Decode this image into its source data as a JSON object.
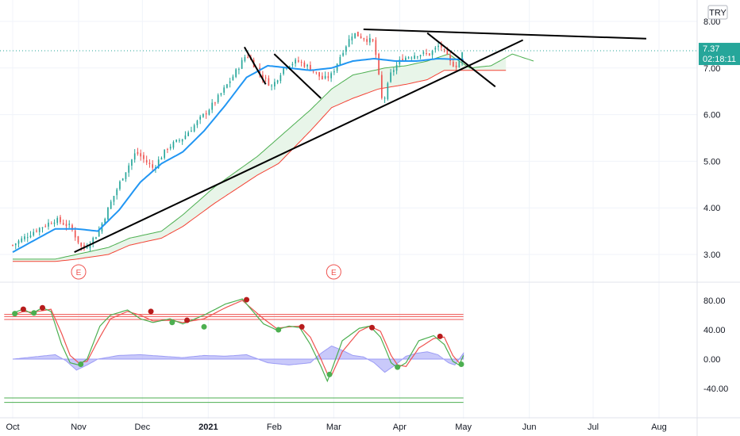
{
  "chart_data": [
    {
      "type": "candlestick",
      "currency": "TRY",
      "last_price_label": "7.37",
      "countdown_label": "02:18:11",
      "y_ticks": [
        "3.00",
        "4.00",
        "5.00",
        "6.00",
        "7.00",
        "8.00"
      ],
      "x_ticks": [
        "Oct",
        "Nov",
        "Dec",
        "2021",
        "Feb",
        "Mar",
        "Apr",
        "May",
        "Jun",
        "Jul",
        "Aug"
      ],
      "earnings_markers": [
        "E",
        "E"
      ],
      "x_days": {
        "Oct": 0,
        "Nov": 31,
        "Dec": 61,
        "2021": 92,
        "Feb": 123,
        "Mar": 151,
        "Apr": 182,
        "May": 212,
        "Jun": 243,
        "Jul": 273,
        "Aug": 304
      },
      "ylim": [
        2.6,
        8.2
      ],
      "close_anchors": [
        [
          0,
          3.2
        ],
        [
          10,
          3.5
        ],
        [
          20,
          3.75
        ],
        [
          27,
          3.6
        ],
        [
          33,
          3.1
        ],
        [
          40,
          3.45
        ],
        [
          46,
          4.1
        ],
        [
          52,
          4.7
        ],
        [
          58,
          5.2
        ],
        [
          66,
          4.85
        ],
        [
          73,
          5.3
        ],
        [
          80,
          5.5
        ],
        [
          86,
          5.8
        ],
        [
          92,
          6.1
        ],
        [
          98,
          6.45
        ],
        [
          104,
          6.85
        ],
        [
          110,
          7.3
        ],
        [
          116,
          6.9
        ],
        [
          122,
          6.6
        ],
        [
          128,
          7.05
        ],
        [
          134,
          7.15
        ],
        [
          140,
          7.0
        ],
        [
          146,
          6.75
        ],
        [
          150,
          6.85
        ],
        [
          155,
          7.35
        ],
        [
          160,
          7.75
        ],
        [
          165,
          7.65
        ],
        [
          170,
          7.55
        ],
        [
          174,
          6.2
        ],
        [
          178,
          6.9
        ],
        [
          183,
          7.2
        ],
        [
          190,
          7.3
        ],
        [
          196,
          7.3
        ],
        [
          201,
          7.5
        ],
        [
          206,
          7.1
        ],
        [
          209,
          7.05
        ],
        [
          212,
          7.37
        ]
      ],
      "ma_anchors": [
        [
          0,
          3.05
        ],
        [
          20,
          3.55
        ],
        [
          30,
          3.55
        ],
        [
          40,
          3.5
        ],
        [
          50,
          3.95
        ],
        [
          60,
          4.55
        ],
        [
          70,
          4.95
        ],
        [
          80,
          5.2
        ],
        [
          90,
          5.65
        ],
        [
          100,
          6.2
        ],
        [
          110,
          6.8
        ],
        [
          120,
          7.05
        ],
        [
          130,
          7.0
        ],
        [
          140,
          6.95
        ],
        [
          150,
          7.0
        ],
        [
          160,
          7.15
        ],
        [
          170,
          7.2
        ],
        [
          180,
          7.15
        ],
        [
          190,
          7.15
        ],
        [
          200,
          7.2
        ],
        [
          212,
          7.18
        ]
      ],
      "cloud_a_anchors": [
        [
          0,
          2.9
        ],
        [
          20,
          2.9
        ],
        [
          30,
          3.0
        ],
        [
          45,
          3.15
        ],
        [
          55,
          3.35
        ],
        [
          70,
          3.5
        ],
        [
          80,
          3.85
        ],
        [
          95,
          4.45
        ],
        [
          115,
          5.1
        ],
        [
          125,
          5.5
        ],
        [
          140,
          6.1
        ],
        [
          150,
          6.55
        ],
        [
          160,
          6.85
        ],
        [
          175,
          7.0
        ],
        [
          185,
          7.05
        ],
        [
          195,
          7.15
        ],
        [
          205,
          7.3
        ],
        [
          215,
          7.0
        ],
        [
          225,
          7.05
        ],
        [
          235,
          7.3
        ],
        [
          245,
          7.15
        ]
      ],
      "cloud_b_anchors": [
        [
          0,
          2.85
        ],
        [
          20,
          2.85
        ],
        [
          30,
          2.9
        ],
        [
          45,
          3.0
        ],
        [
          55,
          3.2
        ],
        [
          70,
          3.35
        ],
        [
          80,
          3.6
        ],
        [
          95,
          4.1
        ],
        [
          115,
          4.7
        ],
        [
          125,
          4.95
        ],
        [
          140,
          5.65
        ],
        [
          150,
          6.15
        ],
        [
          160,
          6.35
        ],
        [
          172,
          6.55
        ],
        [
          185,
          6.65
        ],
        [
          195,
          6.75
        ],
        [
          203,
          6.95
        ],
        [
          208,
          6.95
        ],
        [
          215,
          6.95
        ],
        [
          230,
          6.95
        ],
        [
          232,
          6.95
        ]
      ],
      "trendlines": [
        {
          "from": [
            29,
            3.05
          ],
          "to": [
            240,
            7.6
          ]
        },
        {
          "from": [
            165,
            7.83
          ],
          "to": [
            298,
            7.63
          ]
        },
        {
          "from": [
            109,
            7.45
          ],
          "to": [
            119,
            6.65
          ]
        },
        {
          "from": [
            123,
            7.3
          ],
          "to": [
            145,
            6.35
          ]
        },
        {
          "from": [
            195,
            7.75
          ],
          "to": [
            227,
            6.6
          ]
        }
      ],
      "oscillator": {
        "y_ticks": [
          "80.00",
          "40.00",
          "0.00",
          "-40.00"
        ],
        "ylim": [
          -75,
          100
        ],
        "overbought_levels": [
          61,
          58,
          54
        ],
        "oversold_levels": [
          -53,
          -59
        ],
        "k_anchors": [
          [
            0,
            63
          ],
          [
            5,
            68
          ],
          [
            9,
            62
          ],
          [
            14,
            70
          ],
          [
            18,
            65
          ],
          [
            23,
            20
          ],
          [
            27,
            -5
          ],
          [
            31,
            -8
          ],
          [
            35,
            0
          ],
          [
            41,
            45
          ],
          [
            46,
            60
          ],
          [
            54,
            67
          ],
          [
            60,
            55
          ],
          [
            66,
            50
          ],
          [
            74,
            55
          ],
          [
            80,
            48
          ],
          [
            90,
            60
          ],
          [
            100,
            75
          ],
          [
            108,
            82
          ],
          [
            118,
            48
          ],
          [
            124,
            40
          ],
          [
            130,
            45
          ],
          [
            135,
            43
          ],
          [
            140,
            20
          ],
          [
            145,
            -10
          ],
          [
            148,
            -30
          ],
          [
            150,
            -15
          ],
          [
            155,
            25
          ],
          [
            163,
            42
          ],
          [
            168,
            45
          ],
          [
            173,
            30
          ],
          [
            178,
            -5
          ],
          [
            181,
            -12
          ],
          [
            185,
            -5
          ],
          [
            191,
            25
          ],
          [
            198,
            32
          ],
          [
            203,
            20
          ],
          [
            207,
            -3
          ],
          [
            210,
            -8
          ],
          [
            212,
            5
          ]
        ],
        "d_anchors": [
          [
            0,
            60
          ],
          [
            5,
            65
          ],
          [
            9,
            64
          ],
          [
            14,
            66
          ],
          [
            18,
            68
          ],
          [
            23,
            35
          ],
          [
            27,
            5
          ],
          [
            31,
            -5
          ],
          [
            35,
            -3
          ],
          [
            41,
            30
          ],
          [
            46,
            55
          ],
          [
            54,
            65
          ],
          [
            60,
            60
          ],
          [
            66,
            52
          ],
          [
            74,
            53
          ],
          [
            80,
            50
          ],
          [
            90,
            55
          ],
          [
            100,
            70
          ],
          [
            108,
            80
          ],
          [
            118,
            55
          ],
          [
            124,
            42
          ],
          [
            130,
            44
          ],
          [
            135,
            45
          ],
          [
            140,
            30
          ],
          [
            145,
            0
          ],
          [
            148,
            -20
          ],
          [
            150,
            -22
          ],
          [
            155,
            10
          ],
          [
            163,
            38
          ],
          [
            168,
            45
          ],
          [
            173,
            38
          ],
          [
            178,
            5
          ],
          [
            181,
            -8
          ],
          [
            185,
            -10
          ],
          [
            191,
            15
          ],
          [
            198,
            28
          ],
          [
            203,
            30
          ],
          [
            207,
            5
          ],
          [
            210,
            -5
          ],
          [
            212,
            -6
          ]
        ],
        "histogram_anchors": [
          [
            0,
            0
          ],
          [
            10,
            3
          ],
          [
            20,
            6
          ],
          [
            25,
            -2
          ],
          [
            30,
            -15
          ],
          [
            35,
            -8
          ],
          [
            40,
            0
          ],
          [
            50,
            5
          ],
          [
            60,
            6
          ],
          [
            70,
            4
          ],
          [
            80,
            2
          ],
          [
            90,
            5
          ],
          [
            100,
            4
          ],
          [
            110,
            6
          ],
          [
            120,
            -5
          ],
          [
            130,
            -8
          ],
          [
            140,
            -5
          ],
          [
            145,
            8
          ],
          [
            150,
            18
          ],
          [
            155,
            12
          ],
          [
            160,
            5
          ],
          [
            165,
            3
          ],
          [
            170,
            -5
          ],
          [
            175,
            -18
          ],
          [
            180,
            -8
          ],
          [
            185,
            4
          ],
          [
            190,
            8
          ],
          [
            195,
            10
          ],
          [
            200,
            6
          ],
          [
            205,
            -5
          ],
          [
            208,
            -8
          ],
          [
            212,
            8
          ]
        ],
        "signal_points": [
          {
            "day": 1,
            "value": 62,
            "kind": "buy"
          },
          {
            "day": 5,
            "value": 68,
            "kind": "sell"
          },
          {
            "day": 10,
            "value": 63,
            "kind": "buy"
          },
          {
            "day": 14,
            "value": 70,
            "kind": "sell"
          },
          {
            "day": 32,
            "value": -7,
            "kind": "buy"
          },
          {
            "day": 65,
            "value": 65,
            "kind": "sell"
          },
          {
            "day": 75,
            "value": 50,
            "kind": "buy"
          },
          {
            "day": 82,
            "value": 53,
            "kind": "sell"
          },
          {
            "day": 90,
            "value": 44,
            "kind": "buy"
          },
          {
            "day": 110,
            "value": 81,
            "kind": "sell"
          },
          {
            "day": 125,
            "value": 40,
            "kind": "buy"
          },
          {
            "day": 136,
            "value": 44,
            "kind": "sell"
          },
          {
            "day": 149,
            "value": -21,
            "kind": "buy"
          },
          {
            "day": 169,
            "value": 43,
            "kind": "sell"
          },
          {
            "day": 181,
            "value": -11,
            "kind": "buy"
          },
          {
            "day": 201,
            "value": 31,
            "kind": "sell"
          },
          {
            "day": 211,
            "value": -7,
            "kind": "buy"
          }
        ]
      }
    }
  ],
  "colors": {
    "up_candle": "#26a69a",
    "down_candle": "#ef5350",
    "moving_average": "#2196f3",
    "cloud_lead": "#4caf50",
    "cloud_lag": "#f44336",
    "cloud_fill": "#e8f5e9",
    "trendline": "#000000",
    "price_label": "#26a69a",
    "grid": "#f0f3fa",
    "histogram": "#9c9cf5",
    "osc_k": "#4caf50",
    "osc_d": "#ef5350",
    "buy_dot": "#4caf50",
    "sell_dot": "#b71c1c",
    "overbought_line": "#ef5350",
    "oversold_line": "#4caf50"
  }
}
